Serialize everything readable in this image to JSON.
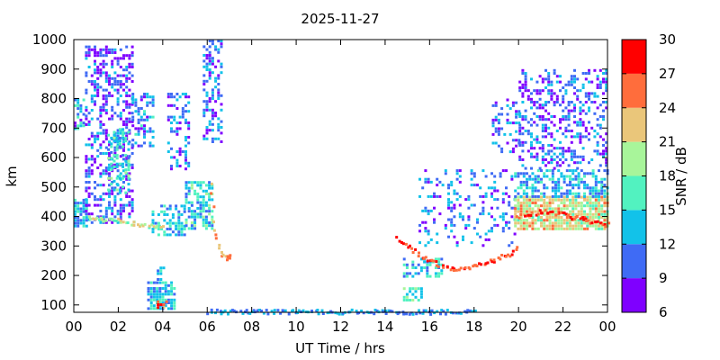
{
  "chart_data": {
    "type": "heatmap",
    "title": "2025-11-27",
    "xlabel": "UT Time / hrs",
    "ylabel": "km",
    "xlim": [
      0,
      24
    ],
    "ylim": [
      75,
      1000
    ],
    "x_ticks": [
      "00",
      "02",
      "04",
      "06",
      "08",
      "10",
      "12",
      "14",
      "16",
      "18",
      "20",
      "22",
      "00"
    ],
    "y_ticks": [
      100,
      200,
      300,
      400,
      500,
      600,
      700,
      800,
      900,
      1000
    ],
    "colorbar": {
      "label": "SNR / dB",
      "min": 6,
      "max": 30,
      "ticks": [
        6,
        9,
        12,
        15,
        18,
        21,
        24,
        27,
        30
      ],
      "colors": [
        "#7f00ff",
        "#3f6bf5",
        "#12c2e9",
        "#52f2c0",
        "#a8f59a",
        "#eac67a",
        "#ff6d3c",
        "#ff0000"
      ]
    },
    "regions": [
      {
        "x": [
          0.0,
          0.6
        ],
        "y": [
          370,
          460
        ],
        "snr": 13,
        "density": 0.85
      },
      {
        "x": [
          0.0,
          0.5
        ],
        "y": [
          700,
          800
        ],
        "snr": 12,
        "density": 0.5
      },
      {
        "x": [
          0.5,
          2.6
        ],
        "y": [
          380,
          980
        ],
        "snr": 10,
        "density": 0.45
      },
      {
        "x": [
          1.5,
          2.5
        ],
        "y": [
          480,
          700
        ],
        "snr": 15,
        "density": 0.45
      },
      {
        "x": [
          2.6,
          3.6
        ],
        "y": [
          640,
          820
        ],
        "snr": 12,
        "density": 0.45
      },
      {
        "x": [
          3.3,
          4.5
        ],
        "y": [
          90,
          180
        ],
        "snr": 14,
        "density": 0.7
      },
      {
        "x": [
          3.6,
          4.2
        ],
        "y": [
          95,
          125
        ],
        "snr": 26,
        "density": 0.6
      },
      {
        "x": [
          3.6,
          4.0
        ],
        "y": [
          190,
          230
        ],
        "snr": 12,
        "density": 0.6
      },
      {
        "x": [
          3.5,
          5.0
        ],
        "y": [
          340,
          440
        ],
        "snr": 14,
        "density": 0.5
      },
      {
        "x": [
          4.2,
          5.2
        ],
        "y": [
          560,
          820
        ],
        "snr": 11,
        "density": 0.35
      },
      {
        "x": [
          5.0,
          6.2
        ],
        "y": [
          360,
          520
        ],
        "snr": 15,
        "density": 0.6
      },
      {
        "x": [
          5.8,
          6.6
        ],
        "y": [
          650,
          1000
        ],
        "snr": 11,
        "density": 0.45
      },
      {
        "x": [
          14.8,
          15.6
        ],
        "y": [
          120,
          160
        ],
        "snr": 16,
        "density": 0.6
      },
      {
        "x": [
          14.8,
          16.5
        ],
        "y": [
          200,
          260
        ],
        "snr": 14,
        "density": 0.45
      },
      {
        "x": [
          15.5,
          19.8
        ],
        "y": [
          300,
          560
        ],
        "snr": 11,
        "density": 0.22
      },
      {
        "x": [
          18.8,
          20.0
        ],
        "y": [
          620,
          800
        ],
        "snr": 11,
        "density": 0.3
      },
      {
        "x": [
          19.8,
          24.0
        ],
        "y": [
          360,
          470
        ],
        "snr": 21,
        "density": 0.85
      },
      {
        "x": [
          19.8,
          24.0
        ],
        "y": [
          470,
          560
        ],
        "snr": 13,
        "density": 0.55
      },
      {
        "x": [
          20.0,
          24.0
        ],
        "y": [
          560,
          900
        ],
        "snr": 10,
        "density": 0.35
      }
    ],
    "traces": [
      {
        "x": [
          0.6,
          1.2,
          2.0,
          2.6,
          3.5,
          4.0
        ],
        "y": [
          400,
          395,
          390,
          380,
          370,
          375
        ],
        "snr": 20
      },
      {
        "x": [
          6.1,
          6.3,
          6.6,
          6.9,
          7.0
        ],
        "y": [
          520,
          350,
          275,
          260,
          270
        ],
        "snr": 24
      },
      {
        "x": [
          14.5,
          15.0,
          16.0,
          17.0,
          18.0,
          18.8,
          19.5,
          19.9
        ],
        "y": [
          330,
          300,
          250,
          225,
          235,
          255,
          275,
          300
        ],
        "snr": 27
      },
      {
        "x": [
          19.9,
          21.0,
          22.0,
          23.0,
          24.0
        ],
        "y": [
          400,
          420,
          410,
          390,
          375
        ],
        "snr": 27
      },
      {
        "x": [
          6.0,
          8.0,
          10.0,
          12.0,
          14.0,
          16.0,
          18.0
        ],
        "y": [
          80,
          80,
          80,
          80,
          80,
          80,
          80
        ],
        "snr": 12
      }
    ]
  }
}
